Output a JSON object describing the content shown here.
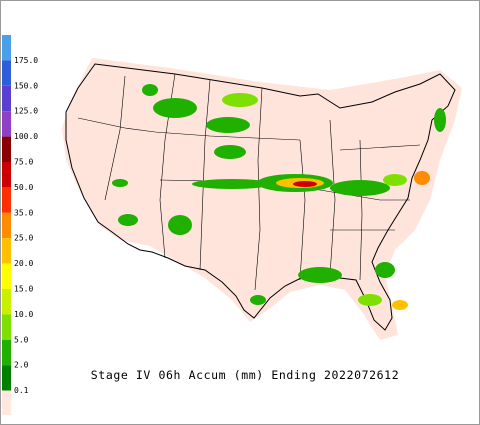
{
  "map": {
    "title": "Stage IV 06h Accum (mm) Ending 2022072612",
    "legend": {
      "labels": [
        "175.0",
        "150.0",
        "125.0",
        "100.0",
        "75.0",
        "50.0",
        "35.0",
        "25.0",
        "20.0",
        "15.0",
        "10.0",
        "5.0",
        "2.0",
        "0.1"
      ],
      "colors": [
        "#4aa0e8",
        "#2f5fd8",
        "#5a3fd0",
        "#9040c8",
        "#8a0000",
        "#cc0000",
        "#ff3000",
        "#ff8c00",
        "#ffc000",
        "#ffff00",
        "#c8f000",
        "#7ee000",
        "#20b000",
        "#008000",
        "#ffe8e0"
      ]
    }
  }
}
